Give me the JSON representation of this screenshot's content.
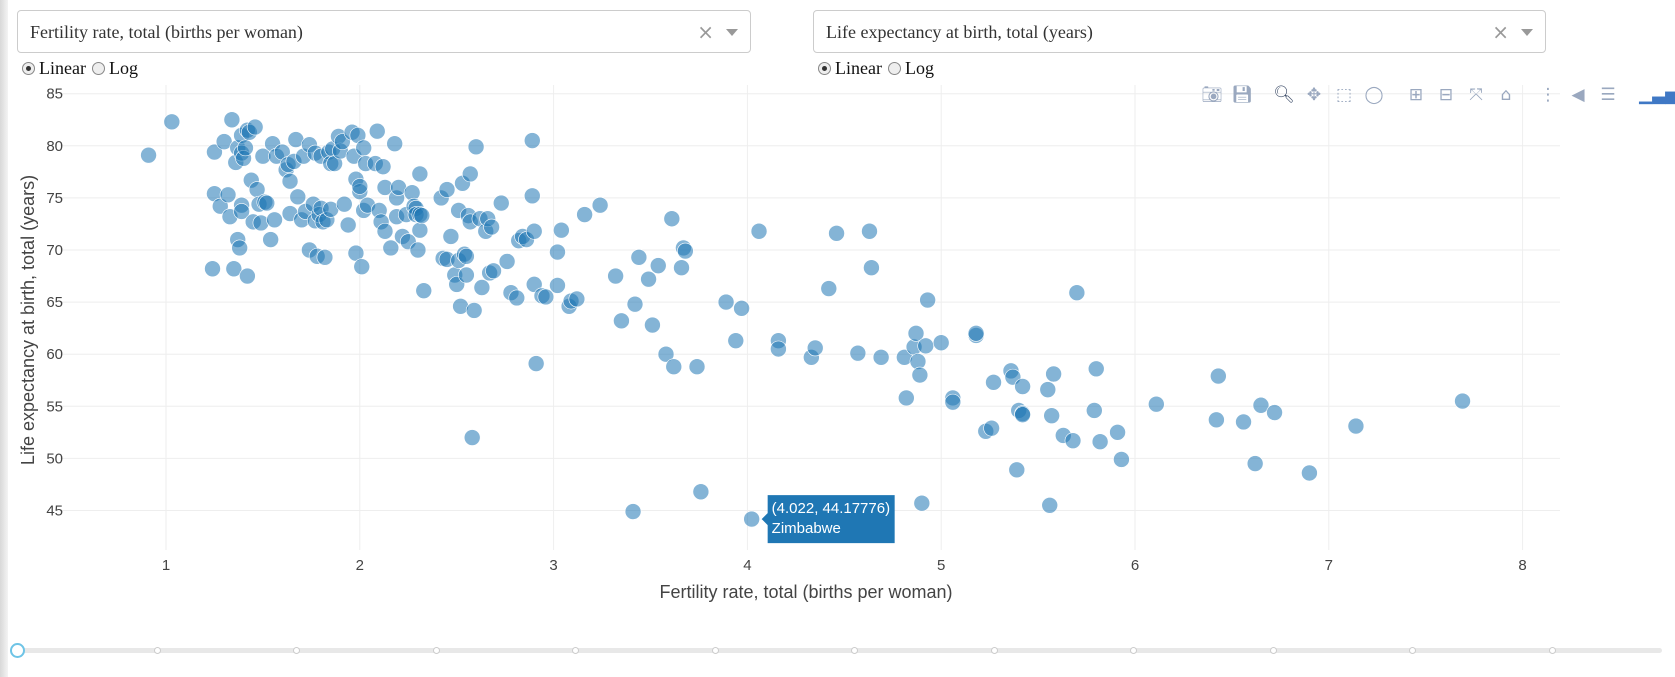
{
  "x_dropdown": {
    "value": "Fertility rate, total (births per woman)",
    "clear": "×"
  },
  "y_dropdown": {
    "value": "Life expectancy at birth, total (years)",
    "clear": "×"
  },
  "x_scale": {
    "linear_label": "Linear",
    "log_label": "Log",
    "selected": "Linear"
  },
  "y_scale": {
    "linear_label": "Linear",
    "log_label": "Log",
    "selected": "Linear"
  },
  "modebar": [
    "camera-icon",
    "save-icon",
    "zoom-icon",
    "pan-icon",
    "box-select-icon",
    "lasso-icon",
    "zoom-in-icon",
    "zoom-out-icon",
    "autoscale-icon",
    "reset-axes-icon",
    "spike-lines-icon",
    "hover-closest-icon",
    "hover-compare-icon",
    "plotly-logo-icon"
  ],
  "hover": {
    "coords": "(4.022, 44.17776)",
    "name": "Zimbabwe"
  },
  "colors": {
    "marker": "#1f77b4",
    "hover_bg": "#1f77b4",
    "grid": "#eeeeee",
    "slider_handle": "#6ec4e6"
  },
  "slider": {
    "steps": 12,
    "selected": 0
  },
  "chart_data": {
    "type": "scatter",
    "xlabel": "Fertility rate, total (births per woman)",
    "ylabel": "Life expectancy at birth, total (years)",
    "xlim": [
      0.5,
      8.1
    ],
    "ylim": [
      42.5,
      86
    ],
    "xticks": [
      1,
      2,
      3,
      4,
      5,
      6,
      7,
      8
    ],
    "yticks": [
      45,
      50,
      55,
      60,
      65,
      70,
      75,
      80,
      85
    ],
    "grid": true,
    "points": [
      [
        0.91,
        79.1
      ],
      [
        1.03,
        82.3
      ],
      [
        1.24,
        68.2
      ],
      [
        1.25,
        79.4
      ],
      [
        1.25,
        75.4
      ],
      [
        1.28,
        74.2
      ],
      [
        1.3,
        80.4
      ],
      [
        1.32,
        75.3
      ],
      [
        1.33,
        73.2
      ],
      [
        1.34,
        82.5
      ],
      [
        1.35,
        68.2
      ],
      [
        1.36,
        78.4
      ],
      [
        1.37,
        79.8
      ],
      [
        1.37,
        71
      ],
      [
        1.38,
        70.2
      ],
      [
        1.39,
        79.3
      ],
      [
        1.39,
        74.3
      ],
      [
        1.39,
        81
      ],
      [
        1.39,
        73.7
      ],
      [
        1.4,
        78.8
      ],
      [
        1.41,
        79.8
      ],
      [
        1.42,
        81.5
      ],
      [
        1.42,
        67.5
      ],
      [
        1.43,
        81.3
      ],
      [
        1.44,
        76.7
      ],
      [
        1.45,
        72.7
      ],
      [
        1.46,
        81.8
      ],
      [
        1.47,
        75.8
      ],
      [
        1.48,
        74.4
      ],
      [
        1.49,
        72.6
      ],
      [
        1.5,
        79
      ],
      [
        1.51,
        74.6
      ],
      [
        1.52,
        74.5
      ],
      [
        1.54,
        71
      ],
      [
        1.55,
        80.2
      ],
      [
        1.56,
        72.9
      ],
      [
        1.57,
        79
      ],
      [
        1.6,
        79.4
      ],
      [
        1.62,
        77.7
      ],
      [
        1.63,
        78.2
      ],
      [
        1.64,
        73.5
      ],
      [
        1.64,
        76.6
      ],
      [
        1.66,
        78.5
      ],
      [
        1.67,
        80.6
      ],
      [
        1.68,
        75.1
      ],
      [
        1.7,
        72.9
      ],
      [
        1.71,
        79
      ],
      [
        1.72,
        73.7
      ],
      [
        1.74,
        70
      ],
      [
        1.74,
        80.1
      ],
      [
        1.76,
        74.4
      ],
      [
        1.77,
        72.8
      ],
      [
        1.77,
        79.3
      ],
      [
        1.78,
        69.4
      ],
      [
        1.79,
        73.4
      ],
      [
        1.8,
        74
      ],
      [
        1.8,
        79
      ],
      [
        1.81,
        72.7
      ],
      [
        1.82,
        69.3
      ],
      [
        1.83,
        72.9
      ],
      [
        1.84,
        79.4
      ],
      [
        1.85,
        73.9
      ],
      [
        1.85,
        78.3
      ],
      [
        1.86,
        79.7
      ],
      [
        1.87,
        78.3
      ],
      [
        1.89,
        80.9
      ],
      [
        1.9,
        79.5
      ],
      [
        1.91,
        80.4
      ],
      [
        1.92,
        74.4
      ],
      [
        1.94,
        72.4
      ],
      [
        1.96,
        81.3
      ],
      [
        1.97,
        79
      ],
      [
        1.98,
        69.7
      ],
      [
        1.98,
        76.8
      ],
      [
        1.99,
        81
      ],
      [
        2.0,
        75.6
      ],
      [
        2.0,
        76.1
      ],
      [
        2.01,
        68.4
      ],
      [
        2.02,
        73.8
      ],
      [
        2.02,
        79.8
      ],
      [
        2.03,
        78.3
      ],
      [
        2.04,
        74.3
      ],
      [
        2.08,
        78.3
      ],
      [
        2.09,
        81.4
      ],
      [
        2.1,
        73.8
      ],
      [
        2.11,
        72.7
      ],
      [
        2.12,
        78
      ],
      [
        2.13,
        71.8
      ],
      [
        2.13,
        76
      ],
      [
        2.16,
        70.2
      ],
      [
        2.18,
        80.2
      ],
      [
        2.19,
        75
      ],
      [
        2.19,
        73.2
      ],
      [
        2.2,
        76
      ],
      [
        2.22,
        71.3
      ],
      [
        2.24,
        73.4
      ],
      [
        2.25,
        70.8
      ],
      [
        2.27,
        75.5
      ],
      [
        2.28,
        74.2
      ],
      [
        2.29,
        74
      ],
      [
        2.29,
        73.4
      ],
      [
        2.3,
        70
      ],
      [
        2.31,
        71.9
      ],
      [
        2.31,
        73.4
      ],
      [
        2.31,
        77.3
      ],
      [
        2.32,
        73.3
      ],
      [
        2.33,
        66.1
      ],
      [
        2.42,
        75
      ],
      [
        2.43,
        69.2
      ],
      [
        2.45,
        75.8
      ],
      [
        2.45,
        69.1
      ],
      [
        2.47,
        71.3
      ],
      [
        2.49,
        67.6
      ],
      [
        2.5,
        66.7
      ],
      [
        2.51,
        73.8
      ],
      [
        2.51,
        69
      ],
      [
        2.52,
        64.6
      ],
      [
        2.53,
        76.4
      ],
      [
        2.54,
        69.6
      ],
      [
        2.55,
        69.4
      ],
      [
        2.55,
        67.6
      ],
      [
        2.56,
        73.3
      ],
      [
        2.57,
        72.7
      ],
      [
        2.57,
        77.3
      ],
      [
        2.58,
        52
      ],
      [
        2.59,
        64.2
      ],
      [
        2.6,
        79.9
      ],
      [
        2.62,
        73
      ],
      [
        2.63,
        66.4
      ],
      [
        2.65,
        71.8
      ],
      [
        2.66,
        73
      ],
      [
        2.67,
        67.8
      ],
      [
        2.68,
        72.2
      ],
      [
        2.69,
        68
      ],
      [
        2.73,
        74.5
      ],
      [
        2.76,
        68.9
      ],
      [
        2.78,
        65.9
      ],
      [
        2.81,
        65.4
      ],
      [
        2.82,
        70.9
      ],
      [
        2.84,
        71.3
      ],
      [
        2.86,
        71
      ],
      [
        2.89,
        75.2
      ],
      [
        2.89,
        80.5
      ],
      [
        2.9,
        71.8
      ],
      [
        2.9,
        66.7
      ],
      [
        2.91,
        59.1
      ],
      [
        2.94,
        65.6
      ],
      [
        2.96,
        65.5
      ],
      [
        3.02,
        66.6
      ],
      [
        3.02,
        69.8
      ],
      [
        3.04,
        71.9
      ],
      [
        3.08,
        64.6
      ],
      [
        3.09,
        65.1
      ],
      [
        3.12,
        65.3
      ],
      [
        3.16,
        73.4
      ],
      [
        3.24,
        74.3
      ],
      [
        3.32,
        67.5
      ],
      [
        3.35,
        63.2
      ],
      [
        3.41,
        44.9
      ],
      [
        3.42,
        64.8
      ],
      [
        3.44,
        69.3
      ],
      [
        3.49,
        67.2
      ],
      [
        3.51,
        62.8
      ],
      [
        3.54,
        68.5
      ],
      [
        3.58,
        60
      ],
      [
        3.61,
        73
      ],
      [
        3.62,
        58.8
      ],
      [
        3.66,
        68.3
      ],
      [
        3.67,
        70.2
      ],
      [
        3.68,
        69.9
      ],
      [
        3.74,
        58.8
      ],
      [
        3.76,
        46.8
      ],
      [
        3.89,
        65
      ],
      [
        3.94,
        61.3
      ],
      [
        3.97,
        64.4
      ],
      [
        4.022,
        44.17776
      ],
      [
        4.06,
        71.8
      ],
      [
        4.16,
        61.3
      ],
      [
        4.16,
        60.5
      ],
      [
        4.33,
        59.7
      ],
      [
        4.35,
        60.6
      ],
      [
        4.42,
        66.3
      ],
      [
        4.46,
        71.6
      ],
      [
        4.57,
        60.1
      ],
      [
        4.63,
        71.8
      ],
      [
        4.64,
        68.3
      ],
      [
        4.69,
        59.7
      ],
      [
        4.81,
        59.7
      ],
      [
        4.82,
        55.8
      ],
      [
        4.86,
        60.7
      ],
      [
        4.87,
        62
      ],
      [
        4.88,
        59.3
      ],
      [
        4.89,
        58
      ],
      [
        4.9,
        45.7
      ],
      [
        4.92,
        60.8
      ],
      [
        4.93,
        65.2
      ],
      [
        5.0,
        61.1
      ],
      [
        5.06,
        55.8
      ],
      [
        5.06,
        55.4
      ],
      [
        5.18,
        61.8
      ],
      [
        5.18,
        62
      ],
      [
        5.23,
        52.6
      ],
      [
        5.26,
        52.9
      ],
      [
        5.27,
        57.3
      ],
      [
        5.36,
        58.4
      ],
      [
        5.37,
        57.8
      ],
      [
        5.39,
        48.9
      ],
      [
        5.4,
        54.6
      ],
      [
        5.42,
        54.3
      ],
      [
        5.42,
        54.2
      ],
      [
        5.42,
        56.9
      ],
      [
        5.55,
        56.6
      ],
      [
        5.56,
        45.5
      ],
      [
        5.57,
        54.1
      ],
      [
        5.58,
        58.1
      ],
      [
        5.63,
        52.2
      ],
      [
        5.68,
        51.7
      ],
      [
        5.7,
        65.9
      ],
      [
        5.79,
        54.6
      ],
      [
        5.8,
        58.6
      ],
      [
        5.82,
        51.6
      ],
      [
        5.91,
        52.5
      ],
      [
        5.93,
        49.9
      ],
      [
        6.11,
        55.2
      ],
      [
        6.42,
        53.7
      ],
      [
        6.43,
        57.9
      ],
      [
        6.56,
        53.5
      ],
      [
        6.62,
        49.5
      ],
      [
        6.65,
        55.1
      ],
      [
        6.72,
        54.4
      ],
      [
        6.9,
        48.6
      ],
      [
        7.14,
        53.1
      ],
      [
        7.69,
        55.5
      ]
    ]
  }
}
